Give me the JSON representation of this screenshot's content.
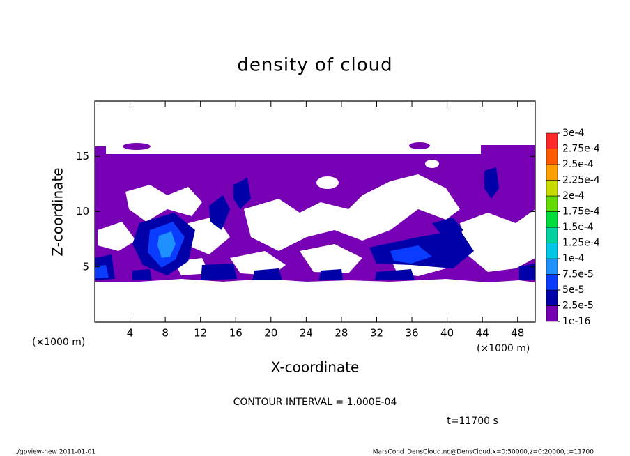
{
  "chart_data": {
    "type": "contour",
    "title": "density of cloud",
    "xlabel": "X-coordinate",
    "ylabel": "Z-coordinate",
    "x_unit": "(×1000 m)",
    "y_unit": "(×1000 m)",
    "xlim": [
      0,
      50
    ],
    "ylim": [
      0,
      20
    ],
    "xticks": [
      4,
      8,
      12,
      16,
      20,
      24,
      28,
      32,
      36,
      40,
      44,
      48
    ],
    "yticks": [
      5,
      10,
      15
    ],
    "levels": [
      {
        "value": 1e-16,
        "label": "1e-16"
      },
      {
        "value": 2.5e-05,
        "label": "2.5e-5"
      },
      {
        "value": 5e-05,
        "label": "5e-5"
      },
      {
        "value": 7.5e-05,
        "label": "7.5e-5"
      },
      {
        "value": 0.0001,
        "label": "1e-4"
      },
      {
        "value": 0.000125,
        "label": "1.25e-4"
      },
      {
        "value": 0.00015,
        "label": "1.5e-4"
      },
      {
        "value": 0.000175,
        "label": "1.75e-4"
      },
      {
        "value": 0.0002,
        "label": "2e-4"
      },
      {
        "value": 0.000225,
        "label": "2.25e-4"
      },
      {
        "value": 0.00025,
        "label": "2.5e-4"
      },
      {
        "value": 0.000275,
        "label": "2.75e-4"
      },
      {
        "value": 0.0003,
        "label": "3e-4"
      }
    ],
    "colors": [
      "#7800b4",
      "#0000a8",
      "#0a3cff",
      "#1e90ff",
      "#00c8e6",
      "#00d2a0",
      "#00dc3c",
      "#64dc00",
      "#c8dc00",
      "#ffa000",
      "#ff5a00",
      "#ff2828",
      "#ff8c8c"
    ],
    "contour_interval": "CONTOUR INTERVAL = 1.000E-04",
    "time": "t=11700 s",
    "footer_left": "./gpview-new   2011-01-01",
    "footer_right": "MarsCond_DensCloud.nc@DensCloud,x=0:50000,z=0:20000,t=11700"
  }
}
